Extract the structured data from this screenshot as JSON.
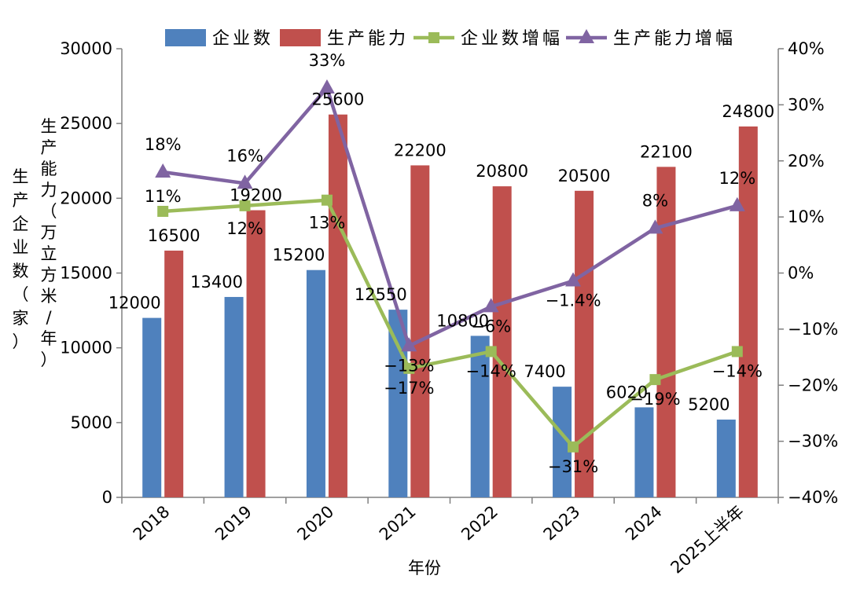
{
  "chart_data": {
    "type": "bar",
    "categories": [
      "2018",
      "2019",
      "2020",
      "2021",
      "2022",
      "2023",
      "2024",
      "2025上半年"
    ],
    "xlabel": "年份",
    "ylabel_left": "生产企业数（家）",
    "ylabel_right_primary": "生产能力（万立方米/年）",
    "ylim_left": [
      0,
      30000
    ],
    "ylim_right": [
      -0.4,
      0.4
    ],
    "yticks_left": [
      "0",
      "5000",
      "10000",
      "15000",
      "20000",
      "25000",
      "30000"
    ],
    "yticks_right": [
      "-40%",
      "-30%",
      "-20%",
      "-10%",
      "0%",
      "10%",
      "20%",
      "30%",
      "40%"
    ],
    "legend_position": "top",
    "series": [
      {
        "name": "企业数",
        "kind": "bar",
        "color": "#4f81bd",
        "values": [
          12000,
          13400,
          15200,
          12550,
          10800,
          7400,
          6020,
          5200
        ],
        "labels": [
          "12000",
          "13400",
          "15200",
          "12550",
          "10800",
          "7400",
          "6020",
          "5200"
        ]
      },
      {
        "name": "生产能力",
        "kind": "bar",
        "color": "#c0504d",
        "values": [
          16500,
          19200,
          25600,
          22200,
          20800,
          20500,
          22100,
          24800
        ],
        "labels": [
          "16500",
          "19200",
          "25600",
          "22200",
          "20800",
          "20500",
          "22100",
          "24800"
        ]
      },
      {
        "name": "企业数增幅",
        "kind": "line",
        "marker": "square",
        "color": "#9bbb59",
        "values": [
          0.11,
          0.12,
          0.13,
          -0.17,
          -0.14,
          -0.31,
          -0.19,
          -0.14
        ],
        "labels": [
          "11%",
          "12%",
          "13%",
          "-17%",
          "-14%",
          "-31%",
          "-19%",
          "-14%"
        ]
      },
      {
        "name": "生产能力增幅",
        "kind": "line",
        "marker": "triangle",
        "color": "#8064a2",
        "values": [
          0.18,
          0.16,
          0.33,
          -0.13,
          -0.06,
          -0.014,
          0.08,
          0.12
        ],
        "labels": [
          "18%",
          "16%",
          "33%",
          "-13%",
          "-6%",
          "-1.4%",
          "8%",
          "12%"
        ]
      }
    ]
  }
}
